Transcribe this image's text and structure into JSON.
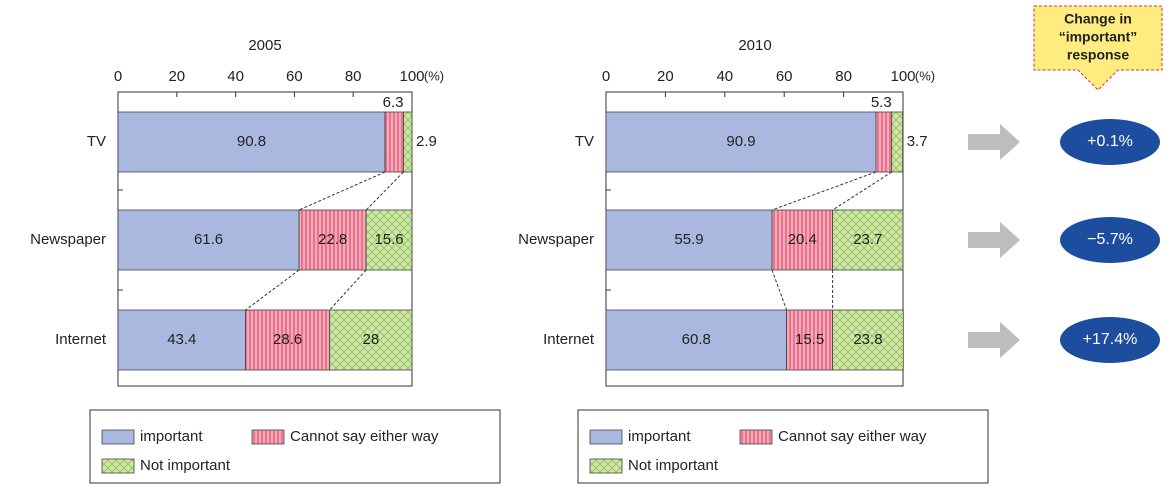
{
  "chart_data": [
    {
      "type": "bar",
      "orientation": "horizontal",
      "stacked": true,
      "title": "2005",
      "xlabel": "(%)",
      "categories": [
        "TV",
        "Newspaper",
        "Internet"
      ],
      "series": [
        {
          "name": "important",
          "color": "#aab8e0",
          "values": [
            90.8,
            61.6,
            43.4
          ]
        },
        {
          "name": "Cannot say either way",
          "color": "#f6a9b9",
          "values": [
            6.3,
            22.8,
            28.6
          ]
        },
        {
          "name": "Not important",
          "color": "#cfe8a6",
          "values": [
            2.9,
            15.6,
            28.0
          ]
        }
      ],
      "xlim": [
        0,
        100
      ],
      "xticks": [
        0,
        20,
        40,
        60,
        80,
        100
      ]
    },
    {
      "type": "bar",
      "orientation": "horizontal",
      "stacked": true,
      "title": "2010",
      "xlabel": "(%)",
      "categories": [
        "TV",
        "Newspaper",
        "Internet"
      ],
      "series": [
        {
          "name": "important",
          "color": "#aab8e0",
          "values": [
            90.9,
            55.9,
            60.8
          ]
        },
        {
          "name": "Cannot say either way",
          "color": "#f6a9b9",
          "values": [
            5.3,
            20.4,
            15.5
          ]
        },
        {
          "name": "Not important",
          "color": "#cfe8a6",
          "values": [
            3.7,
            23.7,
            23.8
          ]
        }
      ],
      "xlim": [
        0,
        100
      ],
      "xticks": [
        0,
        20,
        40,
        60,
        80,
        100
      ]
    }
  ],
  "change": {
    "title_lines": [
      "Change in",
      "“important”",
      "response"
    ],
    "labels": [
      "+0.1%",
      "−5.7%",
      "+17.4%"
    ]
  }
}
